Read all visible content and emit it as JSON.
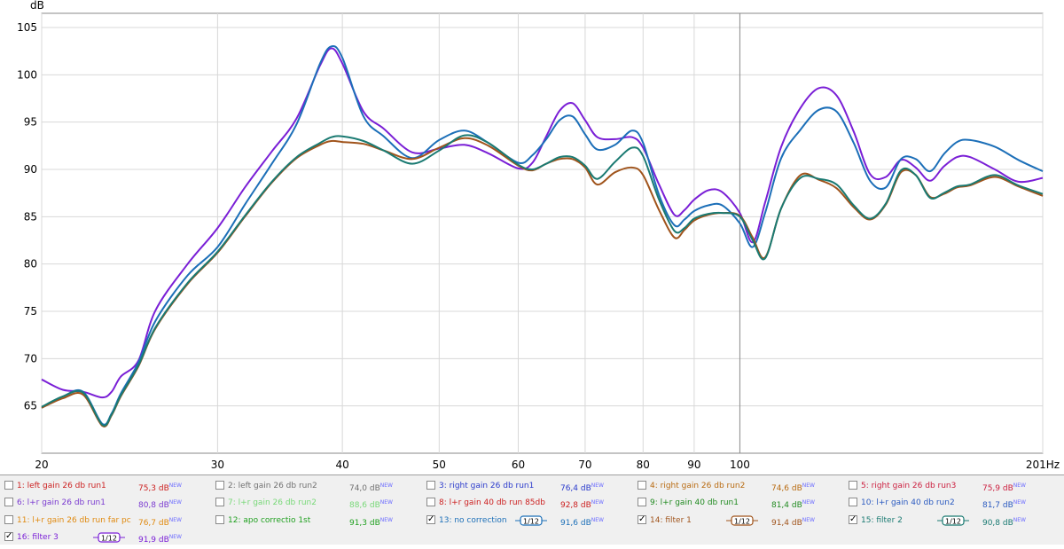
{
  "chart_data": {
    "type": "line",
    "title": "",
    "ylabel": "dB",
    "xlabel": "Hz",
    "xscale": "log",
    "xlim": [
      20,
      201
    ],
    "ylim": [
      60,
      106.5
    ],
    "grid": true,
    "x_ticks": [
      "20",
      "30",
      "40",
      "50",
      "60",
      "70",
      "80",
      "90",
      "100",
      "201Hz"
    ],
    "x_tick_values": [
      20,
      30,
      40,
      50,
      60,
      70,
      80,
      90,
      100,
      201
    ],
    "y_ticks": [
      65,
      70,
      75,
      80,
      85,
      90,
      95,
      100,
      105
    ],
    "series": [
      {
        "name": "16: filter 3",
        "color": "#7a1fd6",
        "x": [
          20,
          21,
          22,
          23,
          23.5,
          24,
          25,
          26,
          28,
          30,
          32,
          34,
          36,
          38,
          39,
          40,
          42,
          44,
          47,
          50,
          53,
          56,
          60,
          62,
          64,
          66,
          68,
          70,
          72,
          75,
          78,
          80,
          83,
          86,
          88,
          90,
          93,
          96,
          100,
          103,
          106,
          110,
          115,
          120,
          125,
          130,
          135,
          140,
          145,
          150,
          155,
          160,
          165,
          170,
          180,
          190,
          201
        ],
        "y": [
          67.8,
          66.7,
          66.5,
          65.9,
          66.5,
          68.1,
          69.8,
          75.1,
          80.0,
          83.8,
          88.2,
          91.9,
          95.4,
          101.0,
          102.8,
          101.2,
          96.1,
          94.3,
          91.8,
          92.2,
          92.6,
          91.7,
          90.1,
          90.7,
          93.5,
          96.2,
          97.0,
          95.2,
          93.4,
          93.2,
          93.4,
          92.3,
          88.4,
          85.2,
          85.7,
          86.8,
          87.8,
          87.6,
          85.4,
          82.3,
          86.5,
          92.4,
          96.5,
          98.6,
          97.8,
          94.0,
          89.5,
          89.2,
          91.0,
          90.2,
          88.8,
          90.3,
          91.3,
          91.3,
          90.0,
          88.7,
          89.1
        ]
      },
      {
        "name": "13: no correction",
        "color": "#1c6fb8",
        "x": [
          20,
          21,
          22,
          23,
          23.5,
          24,
          25,
          26,
          28,
          30,
          32,
          34,
          36,
          38,
          39,
          40,
          42,
          44,
          47,
          50,
          53,
          56,
          60,
          62,
          64,
          66,
          68,
          70,
          72,
          75,
          78,
          80,
          83,
          86,
          88,
          90,
          93,
          96,
          100,
          103,
          106,
          110,
          115,
          120,
          125,
          130,
          135,
          140,
          145,
          150,
          155,
          160,
          165,
          170,
          180,
          190,
          201
        ],
        "y": [
          64.8,
          66.0,
          66.5,
          63.1,
          64.2,
          66.3,
          69.6,
          74.0,
          78.8,
          81.8,
          86.4,
          90.6,
          94.8,
          101.2,
          103.0,
          101.8,
          95.6,
          93.5,
          91.2,
          93.1,
          94.1,
          92.8,
          90.7,
          91.5,
          93.2,
          95.2,
          95.6,
          93.7,
          92.1,
          92.6,
          94.1,
          92.8,
          87.3,
          84.1,
          84.7,
          85.6,
          86.2,
          86.2,
          84.3,
          81.8,
          85.4,
          91.2,
          94.2,
          96.3,
          96.1,
          92.8,
          88.8,
          88.1,
          91.1,
          91.1,
          89.8,
          91.6,
          92.9,
          93.1,
          92.4,
          91.0,
          89.8
        ]
      },
      {
        "name": "14: filter 1",
        "color": "#a0541c",
        "x": [
          20,
          21,
          22,
          23,
          23.5,
          24,
          25,
          26,
          28,
          30,
          32,
          34,
          36,
          38,
          39,
          40,
          42,
          44,
          47,
          50,
          53,
          56,
          60,
          62,
          64,
          66,
          68,
          70,
          72,
          75,
          78,
          80,
          83,
          86,
          88,
          90,
          93,
          96,
          100,
          103,
          106,
          110,
          115,
          120,
          125,
          130,
          135,
          140,
          145,
          150,
          155,
          160,
          165,
          170,
          180,
          190,
          201
        ],
        "y": [
          64.8,
          65.8,
          66.2,
          62.9,
          64.0,
          66.0,
          69.2,
          73.2,
          77.9,
          81.2,
          85.1,
          88.6,
          91.2,
          92.6,
          93.0,
          92.9,
          92.7,
          92.0,
          91.1,
          92.3,
          93.3,
          92.5,
          90.4,
          89.9,
          90.6,
          91.1,
          91.1,
          90.2,
          88.4,
          89.7,
          90.2,
          89.4,
          85.7,
          82.8,
          83.6,
          84.6,
          85.2,
          85.4,
          85.1,
          82.8,
          80.7,
          85.9,
          89.4,
          88.9,
          88.0,
          86.0,
          84.7,
          86.3,
          89.7,
          89.4,
          87.1,
          87.4,
          88.1,
          88.3,
          89.2,
          88.2,
          87.2
        ]
      },
      {
        "name": "15: filter 2",
        "color": "#1a7a72",
        "x": [
          20,
          21,
          22,
          23,
          23.5,
          24,
          25,
          26,
          28,
          30,
          32,
          34,
          36,
          38,
          39,
          40,
          42,
          44,
          47,
          50,
          53,
          56,
          60,
          62,
          64,
          66,
          68,
          70,
          72,
          75,
          78,
          80,
          83,
          86,
          88,
          90,
          93,
          96,
          100,
          103,
          106,
          110,
          115,
          120,
          125,
          130,
          135,
          140,
          145,
          150,
          155,
          160,
          165,
          170,
          180,
          190,
          201
        ],
        "y": [
          64.9,
          66.0,
          66.4,
          63.0,
          64.1,
          66.1,
          69.3,
          73.3,
          78.0,
          81.3,
          85.2,
          88.7,
          91.3,
          92.8,
          93.4,
          93.5,
          93.0,
          92.0,
          90.6,
          92.0,
          93.6,
          92.8,
          90.5,
          90.0,
          90.6,
          91.3,
          91.3,
          90.4,
          89.0,
          90.8,
          92.3,
          91.4,
          86.8,
          83.5,
          83.8,
          84.8,
          85.3,
          85.4,
          85.0,
          82.5,
          80.6,
          85.9,
          89.1,
          89.0,
          88.4,
          86.2,
          84.8,
          86.4,
          89.9,
          89.4,
          87.0,
          87.5,
          88.2,
          88.4,
          89.4,
          88.3,
          87.4
        ]
      }
    ]
  },
  "legend": {
    "items": [
      {
        "checked": false,
        "label": "1: left gain 26 db run1",
        "color": "#cc2020",
        "value": "75,3 dB",
        "new": "NEW"
      },
      {
        "checked": false,
        "label": "2: left gain 26 db run2",
        "color": "#707070",
        "value": "74,0 dB",
        "new": "NEW"
      },
      {
        "checked": false,
        "label": "3: right gain 26 db run1",
        "color": "#2a3acc",
        "value": "76,4 dB",
        "new": "NEW"
      },
      {
        "checked": false,
        "label": "4: right gain 26 db run2",
        "color": "#b86a10",
        "value": "74,6 dB",
        "new": "NEW"
      },
      {
        "checked": false,
        "label": "5: right gain 26 db run3",
        "color": "#cc2040",
        "value": "75,9 dB",
        "new": "NEW"
      },
      {
        "checked": false,
        "label": "6: l+r gain 26 db run1",
        "color": "#7a3ad0",
        "value": "80,8 dB",
        "new": "NEW"
      },
      {
        "checked": false,
        "label": "7: l+r gain 26 db run2",
        "color": "#78d878",
        "value": "88,6 dB",
        "new": "NEW"
      },
      {
        "checked": false,
        "label": "8: l+r gain 40 db run 85db",
        "color": "#cc2020",
        "value": "92,8 dB",
        "new": "NEW"
      },
      {
        "checked": false,
        "label": "9: l+r gain 40 db run1",
        "color": "#208a20",
        "value": "81,4 dB",
        "new": "NEW"
      },
      {
        "checked": false,
        "label": "10: l+r gain 40 db run2",
        "color": "#2a5ac0",
        "value": "81,7 dB",
        "new": "NEW"
      },
      {
        "checked": false,
        "label": "11: l+r gain 26 db run far pc",
        "color": "#e08a10",
        "value": "76,7 dB",
        "new": "NEW"
      },
      {
        "checked": false,
        "label": "12: apo correctio 1st",
        "color": "#20a020",
        "value": "91,3 dB",
        "new": "NEW"
      },
      {
        "checked": true,
        "label": "13: no correction",
        "color": "#1c6fb8",
        "value": "91,6 dB",
        "new": "NEW",
        "smoothing": "1/12"
      },
      {
        "checked": true,
        "label": "14: filter 1",
        "color": "#a0541c",
        "value": "91,4 dB",
        "new": "NEW",
        "smoothing": "1/12"
      },
      {
        "checked": true,
        "label": "15: filter 2",
        "color": "#1a7a72",
        "value": "90,8 dB",
        "new": "NEW",
        "smoothing": "1/12"
      },
      {
        "checked": true,
        "label": "16: filter 3",
        "color": "#7a1fd6",
        "value": "91,9 dB",
        "new": "NEW",
        "smoothing": "1/12"
      }
    ]
  }
}
